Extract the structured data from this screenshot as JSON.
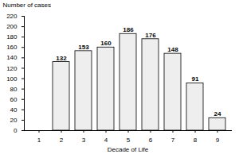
{
  "chart_data": {
    "type": "bar",
    "x_label": "Decade of Life",
    "y_label": "Number of cases",
    "categories": [
      "1",
      "2",
      "3",
      "4",
      "5",
      "6",
      "7",
      "8",
      "9"
    ],
    "values": [
      null,
      132,
      153,
      160,
      186,
      176,
      148,
      91,
      24
    ],
    "color": "#eeeeee",
    "ylim": [
      0,
      220
    ],
    "yticks": [
      0,
      20,
      40,
      60,
      80,
      100,
      120,
      140,
      160,
      180,
      200,
      220
    ],
    "grid": false,
    "data_labels": true
  }
}
